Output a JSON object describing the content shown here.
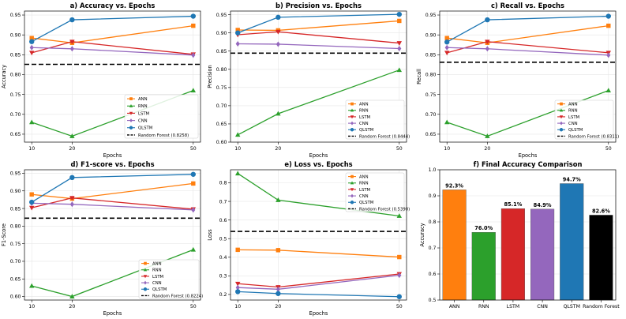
{
  "colors": {
    "ANN": "#ff7f0e",
    "RNN": "#2ca02c",
    "LSTM": "#d62728",
    "CNN": "#9467bd",
    "QLSTM": "#1f77b4",
    "Random Forest": "#000000"
  },
  "chart_data": [
    {
      "type": "line",
      "title": "a) Accuracy vs. Epochs",
      "xlabel": "Epochs",
      "ylabel": "Accuracy",
      "x": [
        10,
        20,
        50
      ],
      "ylim": [
        0.63,
        0.96
      ],
      "yticks": [
        "0.65",
        "0.70",
        "0.75",
        "0.80",
        "0.85",
        "0.90",
        "0.95"
      ],
      "series": [
        {
          "name": "ANN",
          "values": [
            0.892,
            0.88,
            0.923
          ]
        },
        {
          "name": "RNN",
          "values": [
            0.68,
            0.645,
            0.76
          ]
        },
        {
          "name": "LSTM",
          "values": [
            0.855,
            0.883,
            0.851
          ]
        },
        {
          "name": "CNN",
          "values": [
            0.868,
            0.865,
            0.849
          ]
        },
        {
          "name": "QLSTM",
          "values": [
            0.883,
            0.938,
            0.947
          ]
        }
      ],
      "baseline": {
        "label": "Random Forest (0.8258)",
        "value": 0.8258
      },
      "legend_position": "lower-right"
    },
    {
      "type": "line",
      "title": "b) Precision vs. Epochs",
      "xlabel": "Epochs",
      "ylabel": "Precision",
      "x": [
        10,
        20,
        50
      ],
      "ylim": [
        0.6,
        0.96
      ],
      "yticks": [
        "0.60",
        "0.65",
        "0.70",
        "0.75",
        "0.80",
        "0.85",
        "0.90",
        "0.95"
      ],
      "series": [
        {
          "name": "ANN",
          "values": [
            0.908,
            0.907,
            0.933
          ]
        },
        {
          "name": "RNN",
          "values": [
            0.62,
            0.678,
            0.798
          ]
        },
        {
          "name": "LSTM",
          "values": [
            0.895,
            0.903,
            0.872
          ]
        },
        {
          "name": "CNN",
          "values": [
            0.87,
            0.869,
            0.857
          ]
        },
        {
          "name": "QLSTM",
          "values": [
            0.9,
            0.943,
            0.951
          ]
        }
      ],
      "baseline": {
        "label": "Random Forest (0.8444)",
        "value": 0.8444
      },
      "legend_position": "lower-right"
    },
    {
      "type": "line",
      "title": "c) Recall vs. Epochs",
      "xlabel": "Epochs",
      "ylabel": "Recall",
      "x": [
        10,
        20,
        50
      ],
      "ylim": [
        0.63,
        0.96
      ],
      "yticks": [
        "0.65",
        "0.70",
        "0.75",
        "0.80",
        "0.85",
        "0.90",
        "0.95"
      ],
      "series": [
        {
          "name": "ANN",
          "values": [
            0.892,
            0.88,
            0.923
          ]
        },
        {
          "name": "RNN",
          "values": [
            0.68,
            0.645,
            0.76
          ]
        },
        {
          "name": "LSTM",
          "values": [
            0.855,
            0.883,
            0.855
          ]
        },
        {
          "name": "CNN",
          "values": [
            0.868,
            0.865,
            0.849
          ]
        },
        {
          "name": "QLSTM",
          "values": [
            0.882,
            0.938,
            0.947
          ]
        }
      ],
      "baseline": {
        "label": "Random Forest (0.8311)",
        "value": 0.8311
      },
      "legend_position": "lower-right"
    },
    {
      "type": "line",
      "title": "d) F1-score vs. Epochs",
      "xlabel": "Epochs",
      "ylabel": "F1-Score",
      "x": [
        10,
        20,
        50
      ],
      "ylim": [
        0.59,
        0.96
      ],
      "yticks": [
        "0.60",
        "0.65",
        "0.70",
        "0.75",
        "0.80",
        "0.85",
        "0.90",
        "0.95"
      ],
      "series": [
        {
          "name": "ANN",
          "values": [
            0.89,
            0.878,
            0.921
          ]
        },
        {
          "name": "RNN",
          "values": [
            0.63,
            0.6,
            0.733
          ]
        },
        {
          "name": "LSTM",
          "values": [
            0.852,
            0.88,
            0.848
          ]
        },
        {
          "name": "CNN",
          "values": [
            0.865,
            0.862,
            0.846
          ]
        },
        {
          "name": "QLSTM",
          "values": [
            0.868,
            0.938,
            0.947
          ]
        }
      ],
      "baseline": {
        "label": "Random Forest (0.8224)",
        "value": 0.8224
      },
      "legend_position": "lower-right"
    },
    {
      "type": "line",
      "title": "e) Loss vs. Epochs",
      "xlabel": "Epochs",
      "ylabel": "Loss",
      "x": [
        10,
        20,
        50
      ],
      "ylim": [
        0.17,
        0.87
      ],
      "yticks": [
        "0.2",
        "0.3",
        "0.4",
        "0.5",
        "0.6",
        "0.7",
        "0.8"
      ],
      "series": [
        {
          "name": "ANN",
          "values": [
            0.44,
            0.438,
            0.401
          ]
        },
        {
          "name": "RNN",
          "values": [
            0.85,
            0.707,
            0.622
          ]
        },
        {
          "name": "LSTM",
          "values": [
            0.258,
            0.24,
            0.31
          ]
        },
        {
          "name": "CNN",
          "values": [
            0.237,
            0.228,
            0.303
          ]
        },
        {
          "name": "QLSTM",
          "values": [
            0.215,
            0.205,
            0.188
          ]
        }
      ],
      "baseline": {
        "label": "Random Forest (0.5390)",
        "value": 0.539
      },
      "legend_position": "upper-right"
    },
    {
      "type": "bar",
      "title": "f) Final Accuracy Comparison",
      "xlabel": "",
      "ylabel": "Accuracy",
      "categories": [
        "ANN",
        "RNN",
        "LSTM",
        "CNN",
        "QLSTM",
        "Random Forest"
      ],
      "values": [
        0.923,
        0.76,
        0.851,
        0.849,
        0.947,
        0.826
      ],
      "value_labels": [
        "92.3%",
        "76.0%",
        "85.1%",
        "84.9%",
        "94.7%",
        "82.6%"
      ],
      "ylim": [
        0.5,
        1.0
      ],
      "yticks": [
        "0.5",
        "0.6",
        "0.7",
        "0.8",
        "0.9",
        "1.0"
      ]
    }
  ]
}
